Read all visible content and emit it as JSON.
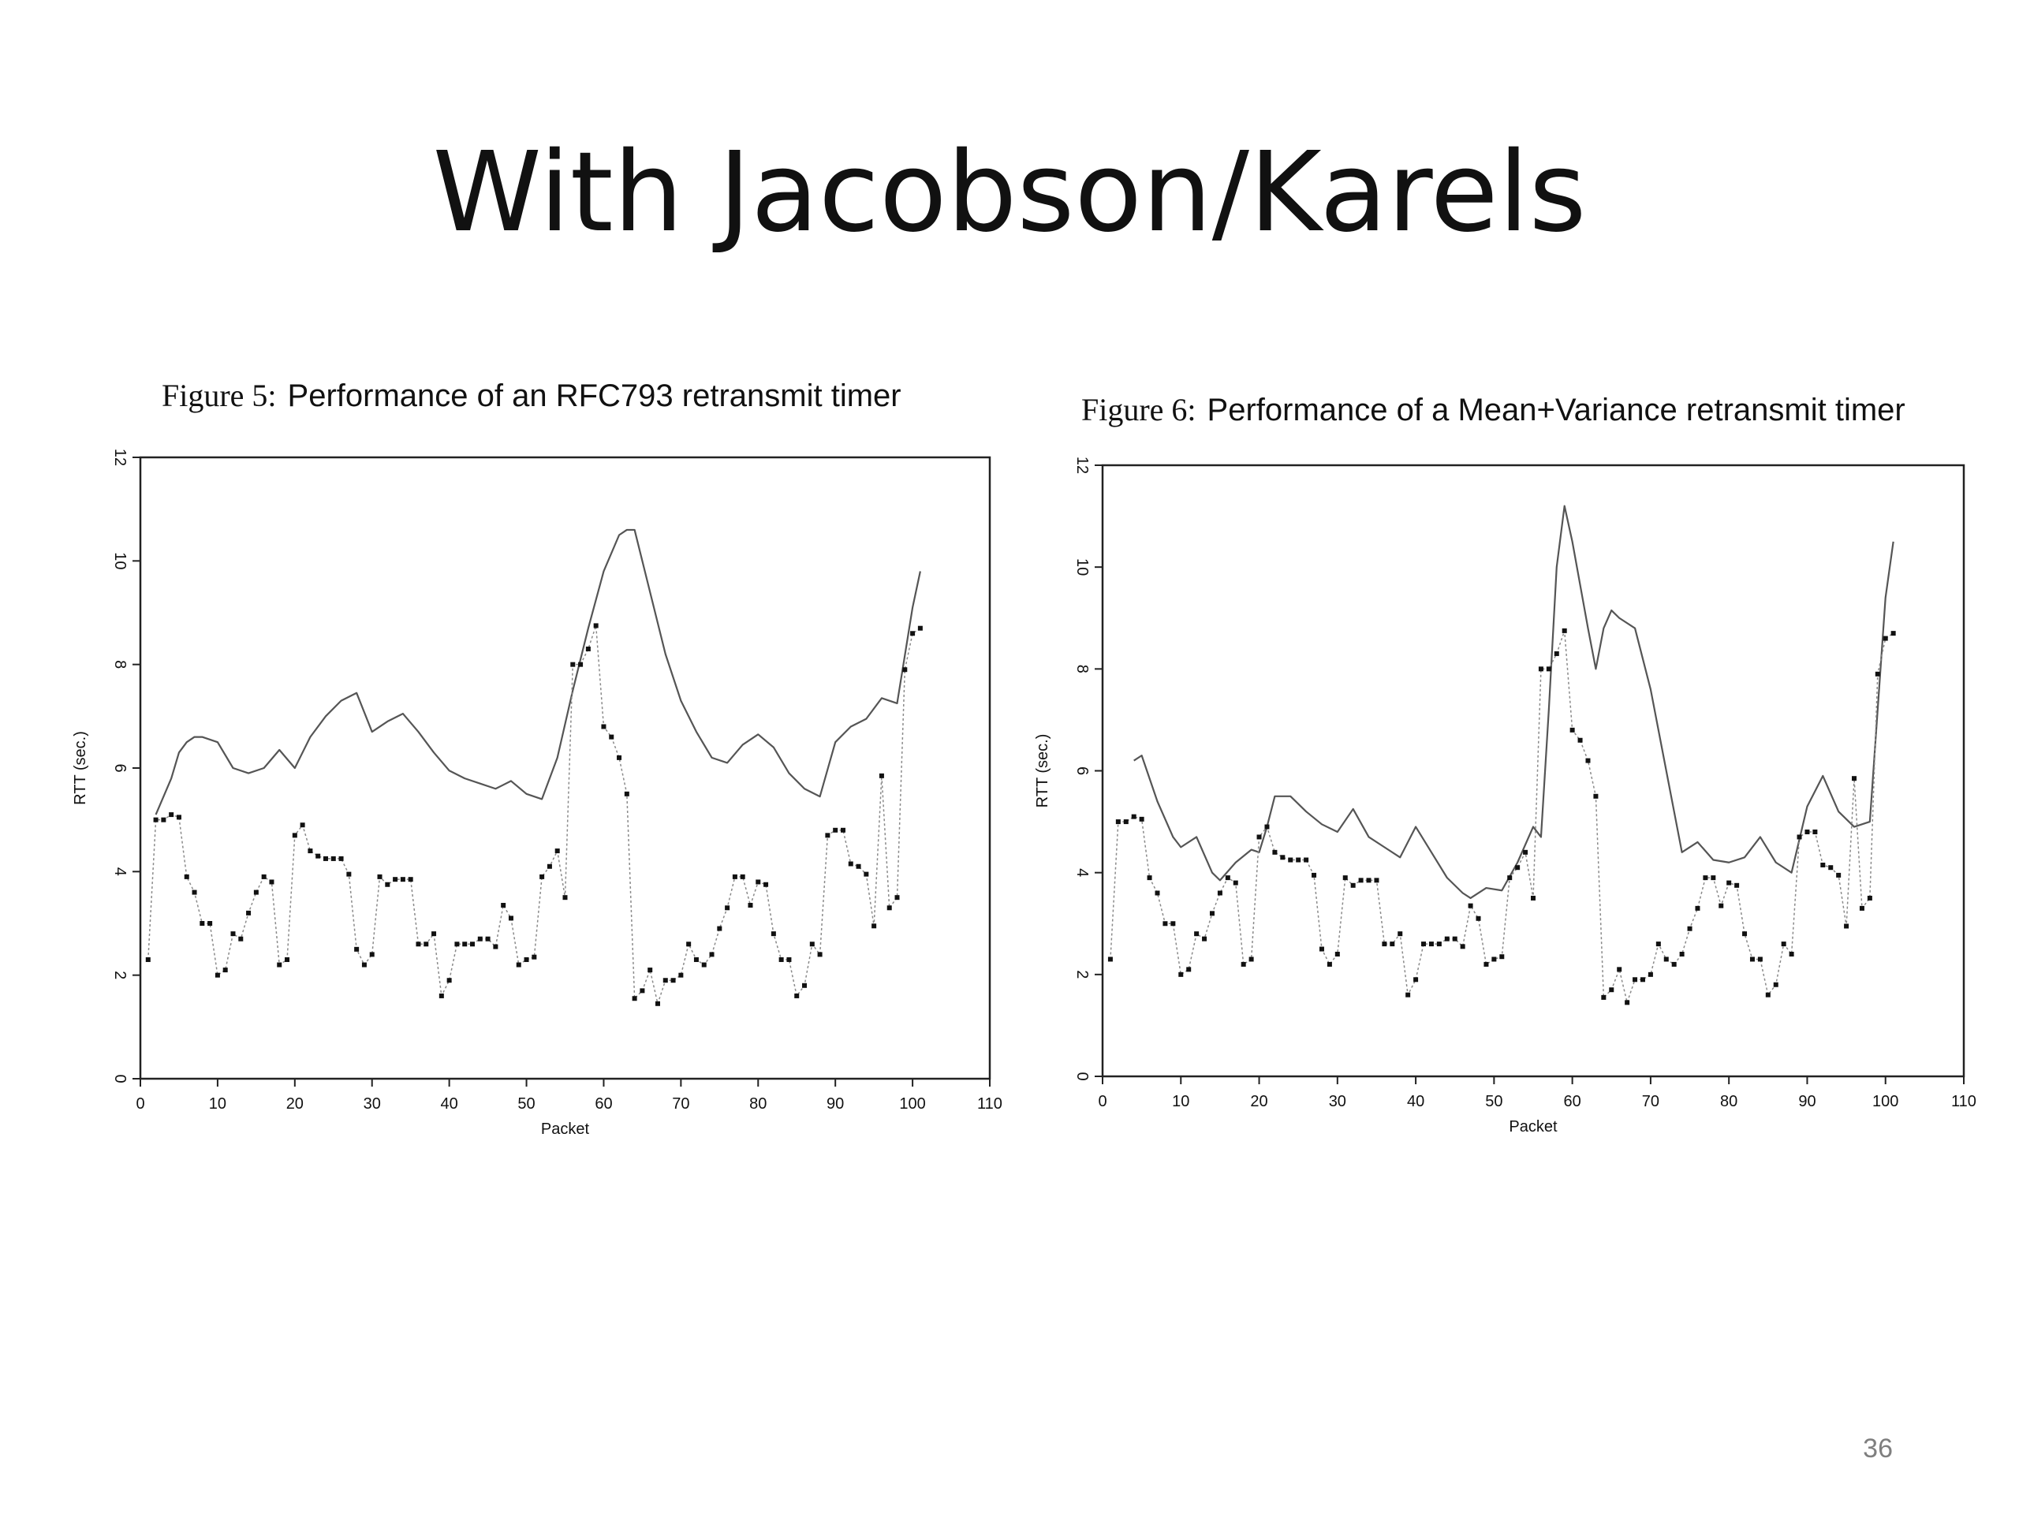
{
  "slide": {
    "title": "With Jacobson/Karels",
    "page_number": "36"
  },
  "chart_data": [
    {
      "type": "line",
      "figure_label": "Figure 5:",
      "title": "Performance of an RFC793 retransmit timer",
      "xlabel": "Packet",
      "ylabel": "RTT (sec.)",
      "xlim": [
        0,
        110
      ],
      "ylim": [
        0,
        12
      ],
      "x_ticks": [
        0,
        10,
        20,
        30,
        40,
        50,
        60,
        70,
        80,
        90,
        100,
        110
      ],
      "y_ticks": [
        0,
        2,
        4,
        6,
        8,
        10,
        12
      ],
      "grid": false,
      "series": [
        {
          "role": "timer",
          "style": "solid",
          "x": [
            2,
            4,
            5,
            6,
            7,
            8,
            10,
            12,
            14,
            16,
            18,
            20,
            22,
            24,
            26,
            28,
            30,
            32,
            34,
            36,
            38,
            40,
            42,
            44,
            46,
            48,
            50,
            52,
            54,
            56,
            58,
            60,
            62,
            63,
            64,
            66,
            68,
            70,
            72,
            74,
            76,
            78,
            80,
            82,
            84,
            86,
            88,
            90,
            92,
            94,
            96,
            98,
            100,
            101
          ],
          "y": [
            5.1,
            5.8,
            6.3,
            6.5,
            6.6,
            6.6,
            6.5,
            6.0,
            5.9,
            6.0,
            6.35,
            6.0,
            6.6,
            7.0,
            7.3,
            7.45,
            6.7,
            6.9,
            7.05,
            6.7,
            6.3,
            5.95,
            5.8,
            5.7,
            5.6,
            5.75,
            5.5,
            5.4,
            6.2,
            7.5,
            8.7,
            9.8,
            10.5,
            10.6,
            10.6,
            9.4,
            8.2,
            7.3,
            6.7,
            6.2,
            6.1,
            6.45,
            6.65,
            6.4,
            5.9,
            5.6,
            5.45,
            6.5,
            6.8,
            6.95,
            7.35,
            7.25,
            9.1,
            9.8
          ]
        },
        {
          "role": "rtt-samples",
          "style": "dotted-with-markers",
          "x": [
            1,
            2,
            3,
            4,
            5,
            6,
            7,
            8,
            9,
            10,
            11,
            12,
            13,
            14,
            15,
            16,
            17,
            18,
            19,
            20,
            21,
            22,
            23,
            24,
            25,
            26,
            27,
            28,
            29,
            30,
            31,
            32,
            33,
            34,
            35,
            36,
            37,
            38,
            39,
            40,
            41,
            42,
            43,
            44,
            45,
            46,
            47,
            48,
            49,
            50,
            51,
            52,
            53,
            54,
            55,
            56,
            57,
            58,
            59,
            60,
            61,
            62,
            63,
            64,
            65,
            66,
            67,
            68,
            69,
            70,
            71,
            72,
            73,
            74,
            75,
            76,
            77,
            78,
            79,
            80,
            81,
            82,
            83,
            84,
            85,
            86,
            87,
            88,
            89,
            90,
            91,
            92,
            93,
            94,
            95,
            96,
            97,
            98,
            99,
            100,
            101
          ],
          "y": [
            2.3,
            5.0,
            5.0,
            5.1,
            5.05,
            3.9,
            3.6,
            3.0,
            3.0,
            2.0,
            2.1,
            2.8,
            2.7,
            3.2,
            3.6,
            3.9,
            3.8,
            2.2,
            2.3,
            4.7,
            4.9,
            4.4,
            4.3,
            4.25,
            4.25,
            4.25,
            3.95,
            2.5,
            2.2,
            2.4,
            3.9,
            3.75,
            3.85,
            3.85,
            3.85,
            2.6,
            2.6,
            2.8,
            1.6,
            1.9,
            2.6,
            2.6,
            2.6,
            2.7,
            2.7,
            2.55,
            3.35,
            3.1,
            2.2,
            2.3,
            2.35,
            3.9,
            4.1,
            4.4,
            3.5,
            8.0,
            8.0,
            8.3,
            8.75,
            6.8,
            6.6,
            6.2,
            5.5,
            1.55,
            1.7,
            2.1,
            1.45,
            1.9,
            1.9,
            2.0,
            2.6,
            2.3,
            2.2,
            2.4,
            2.9,
            3.3,
            3.9,
            3.9,
            3.35,
            3.8,
            3.75,
            2.8,
            2.3,
            2.3,
            1.6,
            1.8,
            2.6,
            2.4,
            4.7,
            4.8,
            4.8,
            4.15,
            4.1,
            3.95,
            2.95,
            5.85,
            3.3,
            3.5,
            7.9,
            8.6,
            8.7
          ]
        }
      ]
    },
    {
      "type": "line",
      "figure_label": "Figure 6:",
      "title": "Performance of a Mean+Variance retransmit timer",
      "xlabel": "Packet",
      "ylabel": "RTT (sec.)",
      "xlim": [
        0,
        110
      ],
      "ylim": [
        0,
        12
      ],
      "x_ticks": [
        0,
        10,
        20,
        30,
        40,
        50,
        60,
        70,
        80,
        90,
        100,
        110
      ],
      "y_ticks": [
        0,
        2,
        4,
        6,
        8,
        10,
        12
      ],
      "grid": false,
      "series": [
        {
          "role": "timer",
          "style": "solid",
          "x": [
            4,
            5,
            7,
            9,
            10,
            12,
            14,
            15,
            17,
            19,
            20,
            21,
            22,
            24,
            26,
            28,
            30,
            32,
            34,
            36,
            38,
            40,
            42,
            44,
            46,
            47,
            49,
            51,
            53,
            55,
            56,
            57,
            58,
            59,
            60,
            62,
            63,
            64,
            65,
            66,
            68,
            70,
            72,
            74,
            76,
            78,
            80,
            82,
            84,
            86,
            88,
            90,
            92,
            94,
            96,
            98,
            100,
            101
          ],
          "y": [
            6.2,
            6.3,
            5.4,
            4.7,
            4.5,
            4.7,
            4.0,
            3.85,
            4.2,
            4.45,
            4.4,
            4.9,
            5.5,
            5.5,
            5.2,
            4.95,
            4.8,
            5.25,
            4.7,
            4.5,
            4.3,
            4.9,
            4.4,
            3.9,
            3.6,
            3.5,
            3.7,
            3.65,
            4.2,
            4.9,
            4.7,
            7.2,
            10.0,
            11.2,
            10.5,
            8.8,
            8.0,
            8.8,
            9.15,
            9.0,
            8.8,
            7.6,
            6.0,
            4.4,
            4.6,
            4.25,
            4.2,
            4.3,
            4.7,
            4.2,
            4.0,
            5.3,
            5.9,
            5.2,
            4.9,
            5.0,
            9.4,
            10.5
          ]
        },
        {
          "role": "rtt-samples",
          "style": "dotted-with-markers",
          "x": [
            1,
            2,
            3,
            4,
            5,
            6,
            7,
            8,
            9,
            10,
            11,
            12,
            13,
            14,
            15,
            16,
            17,
            18,
            19,
            20,
            21,
            22,
            23,
            24,
            25,
            26,
            27,
            28,
            29,
            30,
            31,
            32,
            33,
            34,
            35,
            36,
            37,
            38,
            39,
            40,
            41,
            42,
            43,
            44,
            45,
            46,
            47,
            48,
            49,
            50,
            51,
            52,
            53,
            54,
            55,
            56,
            57,
            58,
            59,
            60,
            61,
            62,
            63,
            64,
            65,
            66,
            67,
            68,
            69,
            70,
            71,
            72,
            73,
            74,
            75,
            76,
            77,
            78,
            79,
            80,
            81,
            82,
            83,
            84,
            85,
            86,
            87,
            88,
            89,
            90,
            91,
            92,
            93,
            94,
            95,
            96,
            97,
            98,
            99,
            100,
            101
          ],
          "y": [
            2.3,
            5.0,
            5.0,
            5.1,
            5.05,
            3.9,
            3.6,
            3.0,
            3.0,
            2.0,
            2.1,
            2.8,
            2.7,
            3.2,
            3.6,
            3.9,
            3.8,
            2.2,
            2.3,
            4.7,
            4.9,
            4.4,
            4.3,
            4.25,
            4.25,
            4.25,
            3.95,
            2.5,
            2.2,
            2.4,
            3.9,
            3.75,
            3.85,
            3.85,
            3.85,
            2.6,
            2.6,
            2.8,
            1.6,
            1.9,
            2.6,
            2.6,
            2.6,
            2.7,
            2.7,
            2.55,
            3.35,
            3.1,
            2.2,
            2.3,
            2.35,
            3.9,
            4.1,
            4.4,
            3.5,
            8.0,
            8.0,
            8.3,
            8.75,
            6.8,
            6.6,
            6.2,
            5.5,
            1.55,
            1.7,
            2.1,
            1.45,
            1.9,
            1.9,
            2.0,
            2.6,
            2.3,
            2.2,
            2.4,
            2.9,
            3.3,
            3.9,
            3.9,
            3.35,
            3.8,
            3.75,
            2.8,
            2.3,
            2.3,
            1.6,
            1.8,
            2.6,
            2.4,
            4.7,
            4.8,
            4.8,
            4.15,
            4.1,
            3.95,
            2.95,
            5.85,
            3.3,
            3.5,
            7.9,
            8.6,
            8.7
          ]
        }
      ]
    }
  ]
}
